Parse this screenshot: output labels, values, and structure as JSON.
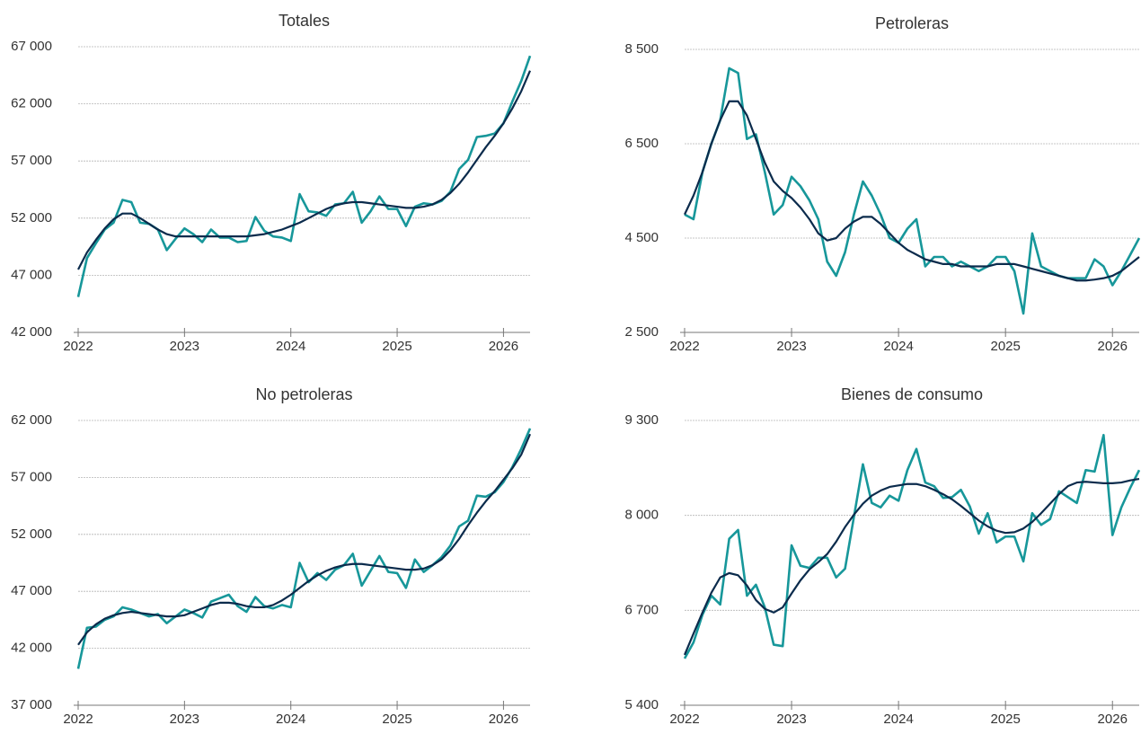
{
  "chart_data": [
    {
      "type": "line",
      "title": "Totales",
      "x": [
        2022,
        2022.083,
        2022.167,
        2022.25,
        2022.333,
        2022.417,
        2022.5,
        2022.583,
        2022.667,
        2022.75,
        2022.833,
        2022.917,
        2023,
        2023.083,
        2023.167,
        2023.25,
        2023.333,
        2023.417,
        2023.5,
        2023.583,
        2023.667,
        2023.75,
        2023.833,
        2023.917,
        2024,
        2024.083,
        2024.167,
        2024.25,
        2024.333,
        2024.417,
        2024.5,
        2024.583,
        2024.667,
        2024.75,
        2024.833,
        2024.917,
        2025,
        2025.083,
        2025.167,
        2025.25,
        2025.333,
        2025.417,
        2025.5,
        2025.583,
        2025.667,
        2025.75,
        2025.833,
        2025.917,
        2026,
        2026.083,
        2026.167,
        2026.25
      ],
      "series": [
        {
          "color": "#17979a",
          "values": [
            45100,
            48500,
            49800,
            51000,
            51600,
            53600,
            53400,
            51600,
            51500,
            51000,
            49200,
            50200,
            51100,
            50600,
            49900,
            51000,
            50300,
            50300,
            49900,
            50000,
            52100,
            50900,
            50400,
            50300,
            50000,
            54100,
            52600,
            52500,
            52200,
            53200,
            53300,
            54300,
            51600,
            52600,
            53900,
            52800,
            52800,
            51300,
            53000,
            53300,
            53200,
            53500,
            54300,
            56300,
            57100,
            59100,
            59200,
            59400,
            60300,
            62200,
            64000,
            66200
          ]
        },
        {
          "color": "#0b2b4c",
          "values": [
            47500,
            49000,
            50100,
            51100,
            51900,
            52400,
            52400,
            52000,
            51500,
            51000,
            50600,
            50400,
            50400,
            50400,
            50400,
            50400,
            50400,
            50400,
            50400,
            50400,
            50500,
            50600,
            50800,
            51000,
            51300,
            51600,
            52000,
            52400,
            52800,
            53100,
            53300,
            53400,
            53400,
            53300,
            53200,
            53100,
            53000,
            52900,
            52900,
            53000,
            53200,
            53600,
            54200,
            55000,
            56000,
            57100,
            58200,
            59200,
            60300,
            61600,
            63100,
            64900
          ]
        }
      ],
      "xlim": [
        2022,
        2026.25
      ],
      "xticks": [
        2022,
        2023,
        2024,
        2025,
        2026
      ],
      "ylim": [
        42000,
        67000
      ],
      "yticks": [
        {
          "value": 42000,
          "label": "42 000"
        },
        {
          "value": 47000,
          "label": "47 000"
        },
        {
          "value": 52000,
          "label": "52 000"
        },
        {
          "value": 57000,
          "label": "57 000"
        },
        {
          "value": 62000,
          "label": "62 000"
        },
        {
          "value": 67000,
          "label": "67 000"
        }
      ],
      "grid": true
    },
    {
      "type": "line",
      "title": "Petroleras",
      "x": [
        2022,
        2022.083,
        2022.167,
        2022.25,
        2022.333,
        2022.417,
        2022.5,
        2022.583,
        2022.667,
        2022.75,
        2022.833,
        2022.917,
        2023,
        2023.083,
        2023.167,
        2023.25,
        2023.333,
        2023.417,
        2023.5,
        2023.583,
        2023.667,
        2023.75,
        2023.833,
        2023.917,
        2024,
        2024.083,
        2024.167,
        2024.25,
        2024.333,
        2024.417,
        2024.5,
        2024.583,
        2024.667,
        2024.75,
        2024.833,
        2024.917,
        2025,
        2025.083,
        2025.167,
        2025.25,
        2025.333,
        2025.417,
        2025.5,
        2025.583,
        2025.667,
        2025.75,
        2025.833,
        2025.917,
        2026,
        2026.083,
        2026.167,
        2026.25
      ],
      "series": [
        {
          "color": "#17979a",
          "values": [
            5000,
            4900,
            5900,
            6500,
            7000,
            8100,
            8000,
            6600,
            6700,
            5900,
            5000,
            5200,
            5800,
            5600,
            5300,
            4900,
            4000,
            3700,
            4200,
            5000,
            5700,
            5400,
            5000,
            4500,
            4400,
            4700,
            4900,
            3900,
            4100,
            4100,
            3900,
            4000,
            3900,
            3800,
            3900,
            4100,
            4100,
            3800,
            2900,
            4600,
            3900,
            3800,
            3700,
            3650,
            3650,
            3650,
            4050,
            3900,
            3500,
            3800,
            4150,
            4500
          ]
        },
        {
          "color": "#0b2b4c",
          "values": [
            5000,
            5400,
            5900,
            6500,
            7000,
            7400,
            7400,
            7100,
            6600,
            6100,
            5700,
            5500,
            5350,
            5150,
            4900,
            4600,
            4450,
            4500,
            4700,
            4850,
            4950,
            4950,
            4800,
            4600,
            4400,
            4250,
            4150,
            4050,
            4000,
            3950,
            3950,
            3900,
            3900,
            3900,
            3900,
            3950,
            3950,
            3950,
            3900,
            3850,
            3800,
            3750,
            3700,
            3650,
            3600,
            3600,
            3620,
            3650,
            3700,
            3800,
            3950,
            4100
          ]
        }
      ],
      "xlim": [
        2022,
        2026.25
      ],
      "xticks": [
        2022,
        2023,
        2024,
        2025,
        2026
      ],
      "ylim": [
        2500,
        8500
      ],
      "yticks": [
        {
          "value": 2500,
          "label": "2 500"
        },
        {
          "value": 4500,
          "label": "4 500"
        },
        {
          "value": 6500,
          "label": "6 500"
        },
        {
          "value": 8500,
          "label": "8 500"
        }
      ],
      "grid": true
    },
    {
      "type": "line",
      "title": "No petroleras",
      "x": [
        2022,
        2022.083,
        2022.167,
        2022.25,
        2022.333,
        2022.417,
        2022.5,
        2022.583,
        2022.667,
        2022.75,
        2022.833,
        2022.917,
        2023,
        2023.083,
        2023.167,
        2023.25,
        2023.333,
        2023.417,
        2023.5,
        2023.583,
        2023.667,
        2023.75,
        2023.833,
        2023.917,
        2024,
        2024.083,
        2024.167,
        2024.25,
        2024.333,
        2024.417,
        2024.5,
        2024.583,
        2024.667,
        2024.75,
        2024.833,
        2024.917,
        2025,
        2025.083,
        2025.167,
        2025.25,
        2025.333,
        2025.417,
        2025.5,
        2025.583,
        2025.667,
        2025.75,
        2025.833,
        2025.917,
        2026,
        2026.083,
        2026.167,
        2026.25
      ],
      "series": [
        {
          "color": "#17979a",
          "values": [
            40200,
            43800,
            43900,
            44500,
            44800,
            45600,
            45400,
            45100,
            44800,
            45000,
            44200,
            44800,
            45400,
            45100,
            44700,
            46100,
            46400,
            46700,
            45700,
            45200,
            46500,
            45700,
            45500,
            45800,
            45600,
            49500,
            47800,
            48600,
            48000,
            48900,
            49300,
            50300,
            47500,
            48800,
            50100,
            48700,
            48600,
            47300,
            49800,
            48700,
            49300,
            50000,
            51000,
            52700,
            53200,
            55400,
            55300,
            55700,
            56600,
            57900,
            59500,
            61300
          ]
        },
        {
          "color": "#0b2b4c",
          "values": [
            42300,
            43400,
            44100,
            44600,
            44900,
            45100,
            45200,
            45100,
            45000,
            44900,
            44800,
            44800,
            44900,
            45200,
            45500,
            45800,
            46000,
            46000,
            45900,
            45700,
            45600,
            45600,
            45800,
            46200,
            46700,
            47300,
            47900,
            48400,
            48800,
            49100,
            49300,
            49400,
            49400,
            49300,
            49200,
            49100,
            49000,
            48900,
            48900,
            49000,
            49300,
            49800,
            50600,
            51600,
            52800,
            53900,
            54900,
            55800,
            56800,
            57800,
            59000,
            60800
          ]
        }
      ],
      "xlim": [
        2022,
        2026.25
      ],
      "xticks": [
        2022,
        2023,
        2024,
        2025,
        2026
      ],
      "ylim": [
        37000,
        62000
      ],
      "yticks": [
        {
          "value": 37000,
          "label": "37 000"
        },
        {
          "value": 42000,
          "label": "42 000"
        },
        {
          "value": 47000,
          "label": "47 000"
        },
        {
          "value": 52000,
          "label": "52 000"
        },
        {
          "value": 57000,
          "label": "57 000"
        },
        {
          "value": 62000,
          "label": "62 000"
        }
      ],
      "grid": true
    },
    {
      "type": "line",
      "title": "Bienes de consumo",
      "x": [
        2022,
        2022.083,
        2022.167,
        2022.25,
        2022.333,
        2022.417,
        2022.5,
        2022.583,
        2022.667,
        2022.75,
        2022.833,
        2022.917,
        2023,
        2023.083,
        2023.167,
        2023.25,
        2023.333,
        2023.417,
        2023.5,
        2023.583,
        2023.667,
        2023.75,
        2023.833,
        2023.917,
        2024,
        2024.083,
        2024.167,
        2024.25,
        2024.333,
        2024.417,
        2024.5,
        2024.583,
        2024.667,
        2024.75,
        2024.833,
        2024.917,
        2025,
        2025.083,
        2025.167,
        2025.25,
        2025.333,
        2025.417,
        2025.5,
        2025.583,
        2025.667,
        2025.75,
        2025.833,
        2025.917,
        2026,
        2026.083,
        2026.167,
        2026.25
      ],
      "series": [
        {
          "color": "#17979a",
          "values": [
            6040,
            6260,
            6640,
            6900,
            6780,
            7680,
            7800,
            6900,
            7050,
            6740,
            6230,
            6210,
            7590,
            7310,
            7280,
            7420,
            7420,
            7150,
            7270,
            7980,
            8700,
            8170,
            8110,
            8270,
            8200,
            8620,
            8910,
            8450,
            8400,
            8240,
            8250,
            8350,
            8120,
            7750,
            8030,
            7630,
            7710,
            7710,
            7370,
            8030,
            7870,
            7950,
            8330,
            8250,
            8170,
            8620,
            8600,
            9100,
            7730,
            8110,
            8380,
            8620
          ]
        },
        {
          "color": "#0b2b4c",
          "values": [
            6090,
            6380,
            6670,
            6940,
            7150,
            7210,
            7180,
            7040,
            6840,
            6720,
            6670,
            6740,
            6930,
            7110,
            7260,
            7360,
            7470,
            7640,
            7840,
            8010,
            8160,
            8270,
            8340,
            8390,
            8410,
            8430,
            8430,
            8400,
            8350,
            8290,
            8220,
            8130,
            8030,
            7930,
            7850,
            7790,
            7760,
            7770,
            7820,
            7910,
            8030,
            8160,
            8290,
            8400,
            8450,
            8460,
            8450,
            8440,
            8440,
            8450,
            8480,
            8500
          ]
        }
      ],
      "xlim": [
        2022,
        2026.25
      ],
      "xticks": [
        2022,
        2023,
        2024,
        2025,
        2026
      ],
      "ylim": [
        5400,
        9300
      ],
      "yticks": [
        {
          "value": 5400,
          "label": "5 400"
        },
        {
          "value": 6700,
          "label": "6 700"
        },
        {
          "value": 8000,
          "label": "8 000"
        },
        {
          "value": 9300,
          "label": "9 300"
        }
      ],
      "grid": true
    }
  ]
}
